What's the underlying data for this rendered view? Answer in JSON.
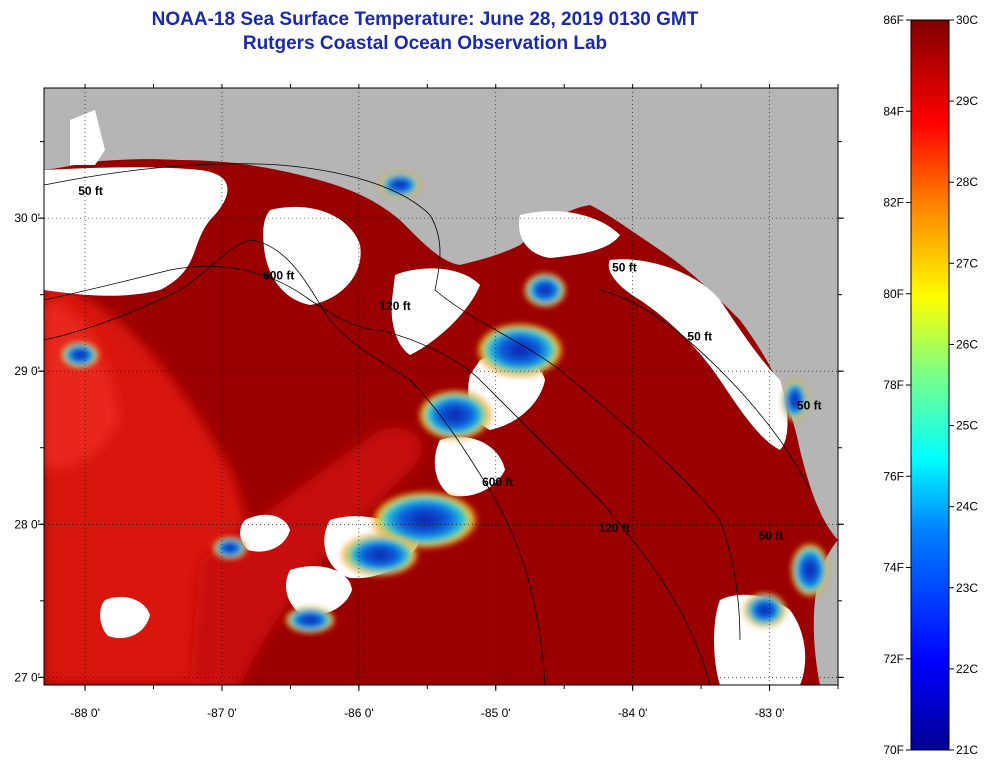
{
  "header": {
    "title": "NOAA-18 Sea Surface Temperature:  June 28, 2019 0130 GMT",
    "subtitle": "Rutgers Coastal Ocean Observation Lab"
  },
  "map": {
    "lon_range": [
      -88.3,
      -82.5
    ],
    "lat_range": [
      26.95,
      30.85
    ],
    "lon_ticks": [
      {
        "value": -88,
        "label": "-88 0'"
      },
      {
        "value": -87,
        "label": "-87 0'"
      },
      {
        "value": -86,
        "label": "-86 0'"
      },
      {
        "value": -85,
        "label": "-85 0'"
      },
      {
        "value": -84,
        "label": "-84 0'"
      },
      {
        "value": -83,
        "label": "-83 0'"
      }
    ],
    "lat_ticks": [
      {
        "value": 30,
        "label": "30 0'"
      },
      {
        "value": 29,
        "label": "29 0'"
      },
      {
        "value": 28,
        "label": "28 0'"
      },
      {
        "value": 27,
        "label": "27 0'"
      }
    ],
    "bathymetry_labels": [
      {
        "text": "50 ft",
        "lon": -88.05,
        "lat": 30.15
      },
      {
        "text": "600 ft",
        "lon": -86.7,
        "lat": 29.6
      },
      {
        "text": "120 ft",
        "lon": -85.85,
        "lat": 29.4
      },
      {
        "text": "50 ft",
        "lon": -84.15,
        "lat": 29.65
      },
      {
        "text": "50 ft",
        "lon": -83.6,
        "lat": 29.2
      },
      {
        "text": "50 ft",
        "lon": -82.8,
        "lat": 28.75
      },
      {
        "text": "600 ft",
        "lon": -85.1,
        "lat": 28.25
      },
      {
        "text": "120 ft",
        "lon": -84.25,
        "lat": 27.95
      },
      {
        "text": "50 ft",
        "lon": -83.08,
        "lat": 27.9
      }
    ],
    "colors": {
      "land": "#b5b5b5",
      "cloud": "#ffffff",
      "warm_water": "#9b0000",
      "hot_water": "#d8140a"
    }
  },
  "colorbar": {
    "fahrenheit_labels": [
      "86F",
      "84F",
      "82F",
      "80F",
      "78F",
      "76F",
      "74F",
      "72F",
      "70F"
    ],
    "celsius_labels": [
      "30C",
      "29C",
      "28C",
      "27C",
      "26C",
      "25C",
      "24C",
      "23C",
      "22C",
      "21C"
    ],
    "range_c": [
      21,
      30
    ]
  }
}
